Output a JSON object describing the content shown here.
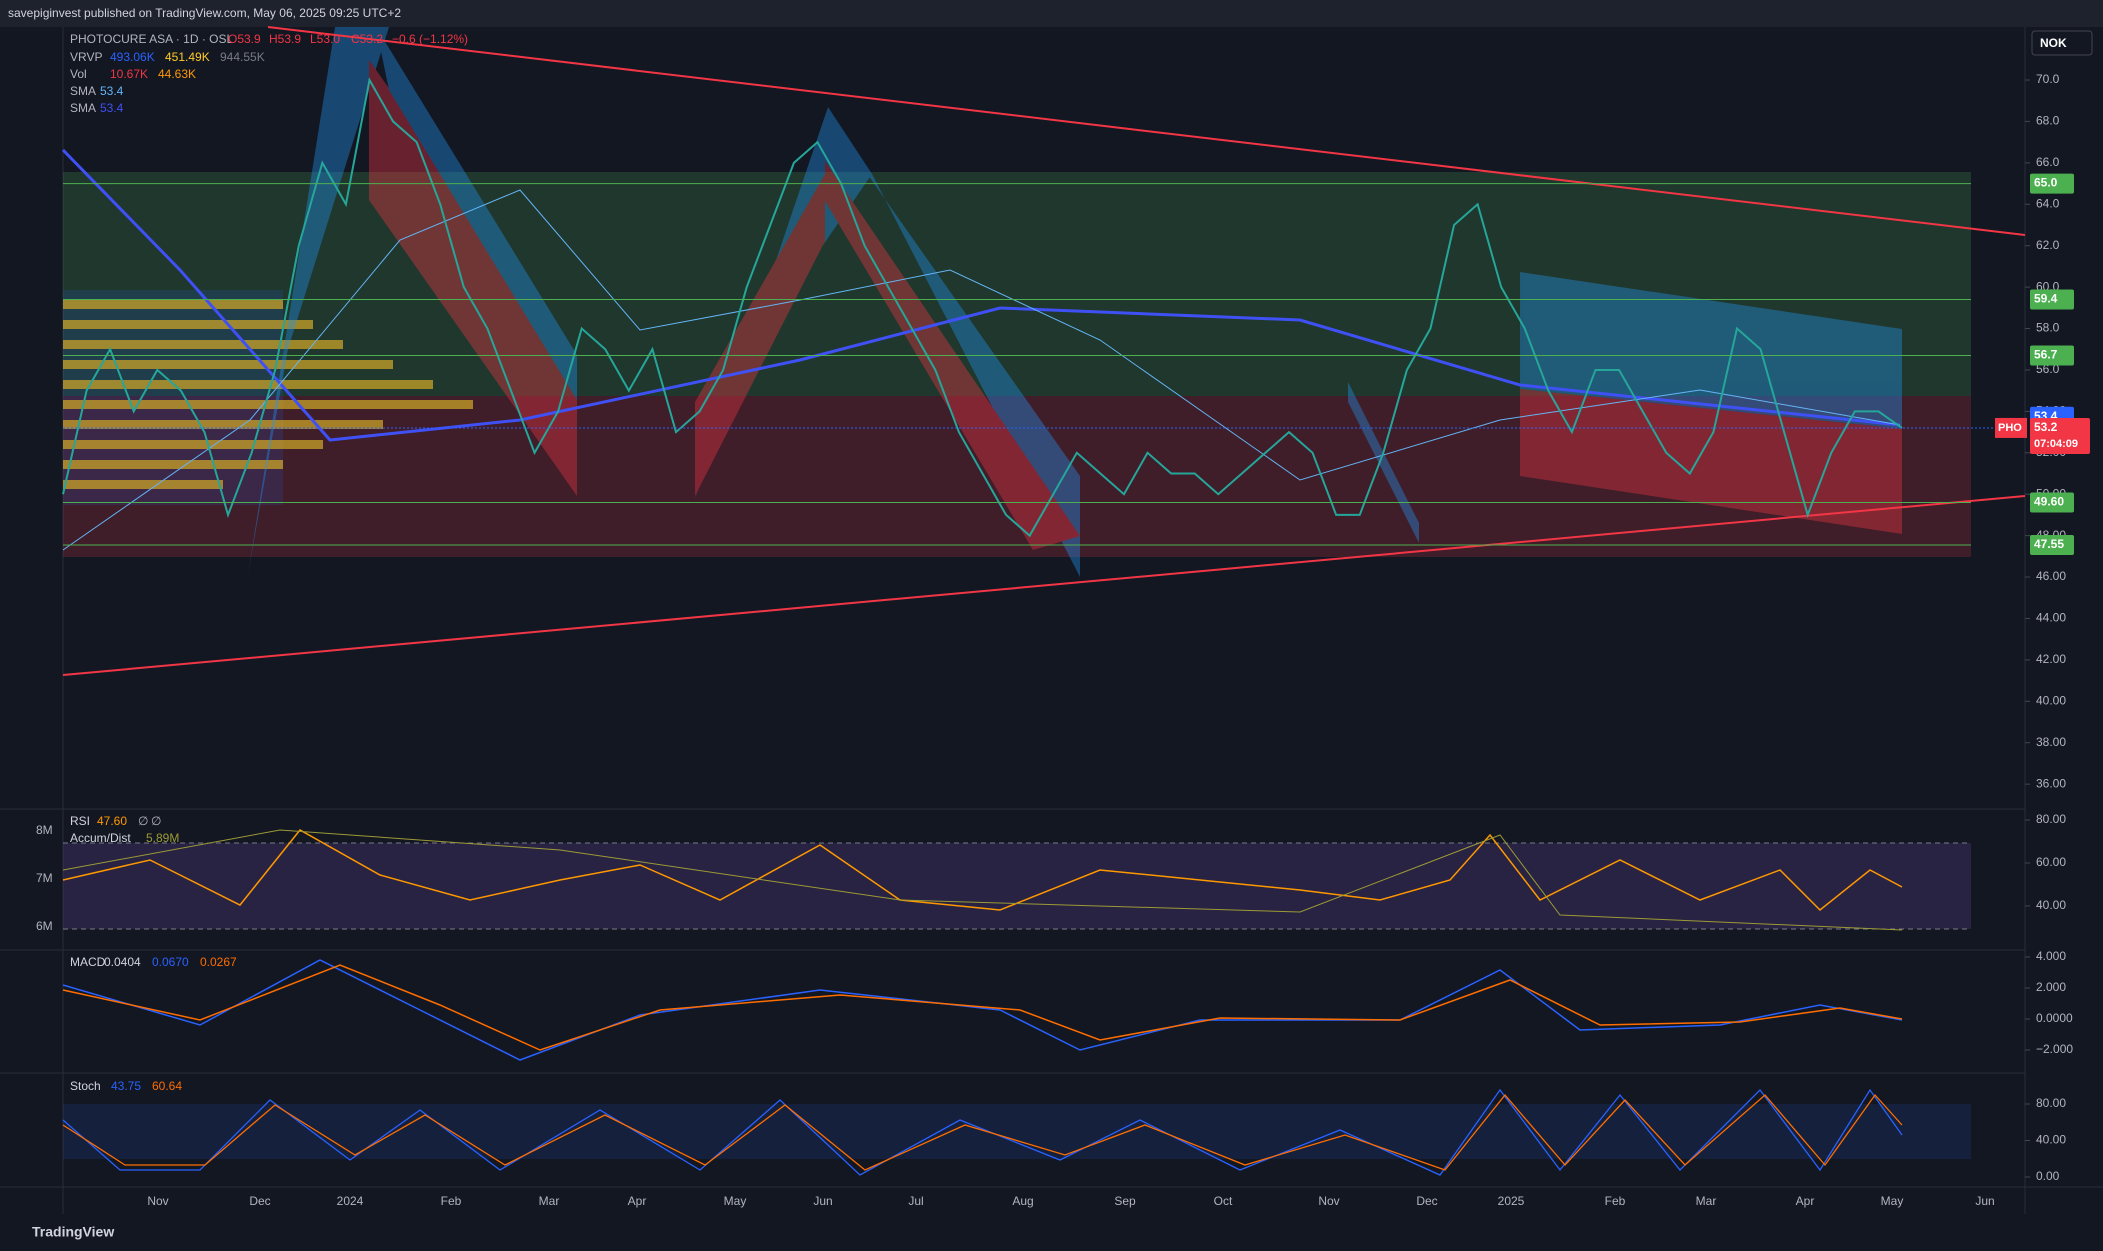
{
  "header": {
    "publisher": "savepiginvest published on TradingView.com, May 06, 2025 09:25 UTC+2",
    "currency": "NOK",
    "footer": "TradingView"
  },
  "legend": {
    "symbol": "PHOTOCURE ASA · 1D · OSL",
    "ohlc": [
      "O53.9",
      "H53.9",
      "L53.0",
      "C53.2",
      "−0.6 (−1.12%)"
    ],
    "vrvp": {
      "name": "VRVP",
      "values": [
        "493.06K",
        "451.49K",
        "944.55K"
      ]
    },
    "vol": {
      "name": "Vol",
      "values": [
        "10.67K",
        "44.63K"
      ]
    },
    "sma": [
      {
        "name": "SMA",
        "value": 53.4
      },
      {
        "name": "SMA",
        "value": 53.4
      }
    ]
  },
  "price": {
    "ylim": [
      34.8,
      72.56
    ],
    "yticks": [
      {
        "value": 36,
        "label": "36.00"
      },
      {
        "value": 38,
        "label": "38.00"
      },
      {
        "value": 40,
        "label": "40.00"
      },
      {
        "value": 42,
        "label": "42.00"
      },
      {
        "value": 44,
        "label": "44.00"
      },
      {
        "value": 46,
        "label": "46.00"
      },
      {
        "value": 48,
        "label": "48.00"
      },
      {
        "value": 50,
        "label": "50.00"
      },
      {
        "value": 52,
        "label": "52.00"
      },
      {
        "value": 54,
        "label": "54.00"
      },
      {
        "value": 56,
        "label": "56.0"
      },
      {
        "value": 58,
        "label": "58.0"
      },
      {
        "value": 60,
        "label": "60.0"
      },
      {
        "value": 62,
        "label": "62.0"
      },
      {
        "value": 64,
        "label": "64.0"
      },
      {
        "value": 66,
        "label": "66.0"
      },
      {
        "value": 68,
        "label": "68.0"
      },
      {
        "value": 70,
        "label": "70.0"
      }
    ],
    "closes": [
      50,
      55,
      57,
      54,
      56,
      55,
      53,
      49,
      52,
      56,
      62,
      66,
      64,
      70,
      68,
      67,
      64,
      60,
      58,
      55,
      52,
      54,
      58,
      57,
      55,
      57,
      53,
      54,
      56,
      60,
      63,
      66,
      67,
      65,
      62,
      60,
      58,
      56,
      53,
      51,
      49,
      48,
      50,
      52,
      51,
      50,
      52,
      51,
      51,
      50,
      51,
      52,
      53,
      52,
      49,
      49,
      52,
      56,
      58,
      63,
      64,
      60,
      58,
      55,
      53,
      56,
      56,
      54,
      52,
      51,
      53,
      58,
      57,
      53,
      49,
      52,
      54,
      54,
      53.2
    ],
    "last": {
      "name": "PHO",
      "value": 53.2,
      "countdown": "07:04:09"
    },
    "levels": [
      {
        "value": 65,
        "label": "65.0"
      },
      {
        "value": 59.4,
        "label": "59.4"
      },
      {
        "value": 56.7,
        "label": "56.7"
      },
      {
        "value": 49.6,
        "label": "49.60"
      },
      {
        "value": 47.55,
        "label": "47.55"
      }
    ],
    "sma_badges": [
      53.4,
      53.4
    ]
  },
  "time_axis": [
    "Nov",
    "Dec",
    "2024",
    "Feb",
    "Mar",
    "Apr",
    "May",
    "Jun",
    "Jul",
    "Aug",
    "Sep",
    "Oct",
    "Nov",
    "Dec",
    "2025",
    "Feb",
    "Mar",
    "Apr",
    "May",
    "Jun"
  ],
  "rsi": {
    "legend": [
      "RSI",
      "47.60",
      "∅",
      "∅"
    ],
    "accum": [
      "Accum/Dist",
      "5.89M"
    ],
    "ylim": [
      19.5,
      85.1
    ],
    "yticks": [
      {
        "value": 80,
        "label": "80.00"
      },
      {
        "value": 60,
        "label": "60.00"
      },
      {
        "value": 40,
        "label": "40.00"
      }
    ],
    "y2lim": [
      5520000,
      8460000
    ],
    "y2ticks": [
      {
        "value": 8000000,
        "label": "8M"
      },
      {
        "value": 7000000,
        "label": "7M"
      },
      {
        "value": 6000000,
        "label": "6M"
      }
    ]
  },
  "macd": {
    "legend": [
      "MACD",
      "0.0404",
      "0.0670",
      "0.0267"
    ],
    "ylim": [
      -3.48,
      4.45
    ],
    "yticks": [
      {
        "value": 4,
        "label": "4.000"
      },
      {
        "value": 2,
        "label": "2.000"
      },
      {
        "value": 0,
        "label": "0.0000"
      },
      {
        "value": -2,
        "label": "−2.000"
      }
    ]
  },
  "stoch": {
    "legend": [
      "Stoch",
      "43.75",
      "60.64"
    ],
    "ylim": [
      -11,
      114
    ],
    "yticks": [
      {
        "value": 80,
        "label": "80.00"
      },
      {
        "value": 40,
        "label": "40.00"
      },
      {
        "value": 0,
        "label": "0.00"
      }
    ]
  }
}
